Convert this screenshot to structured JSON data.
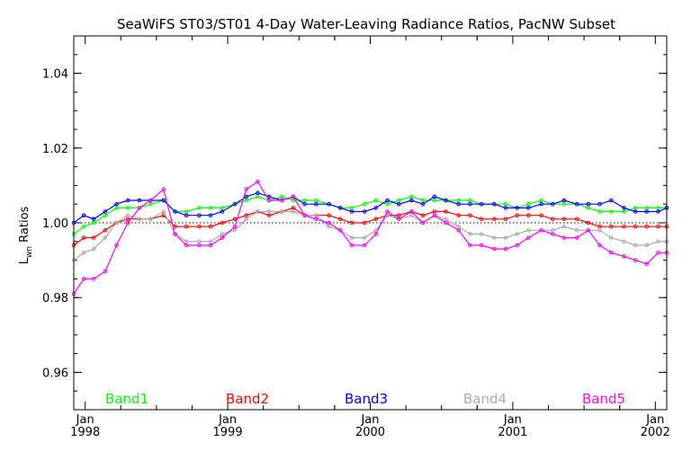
{
  "chart_data": {
    "type": "line",
    "title": "SeaWiFS ST03/ST01 4-Day Water-Leaving Radiance Ratios, PacNW Subset",
    "ylabel_main": "L",
    "ylabel_sub": "wn",
    "ylabel_rest": " Ratios",
    "xlabel": "",
    "ylim": [
      0.95,
      1.05
    ],
    "xlim": [
      1997.92,
      2002.08
    ],
    "yticks": [
      {
        "v": 0.96,
        "label": "0.96"
      },
      {
        "v": 0.98,
        "label": "0.98"
      },
      {
        "v": 1.0,
        "label": "1.00"
      },
      {
        "v": 1.02,
        "label": "1.02"
      },
      {
        "v": 1.04,
        "label": "1.04"
      }
    ],
    "xticks": [
      {
        "v": 1998.0,
        "month": "Jan",
        "year": "1998"
      },
      {
        "v": 1999.0,
        "month": "Jan",
        "year": "1999"
      },
      {
        "v": 2000.0,
        "month": "Jan",
        "year": "2000"
      },
      {
        "v": 2001.0,
        "month": "Jan",
        "year": "2001"
      },
      {
        "v": 2002.0,
        "month": "Jan",
        "year": "2002"
      }
    ],
    "reference_line": 1.0,
    "grid": false,
    "legend_placement": "bottom",
    "x": [
      1997.92,
      1997.99,
      1998.06,
      1998.14,
      1998.22,
      1998.3,
      1998.38,
      1998.46,
      1998.55,
      1998.63,
      1998.71,
      1998.8,
      1998.88,
      1998.96,
      1999.05,
      1999.13,
      1999.21,
      1999.29,
      1999.38,
      1999.46,
      1999.54,
      1999.62,
      1999.71,
      1999.79,
      1999.87,
      1999.96,
      2000.04,
      2000.12,
      2000.2,
      2000.29,
      2000.37,
      2000.45,
      2000.53,
      2000.62,
      2000.7,
      2000.78,
      2000.87,
      2000.95,
      2001.03,
      2001.11,
      2001.2,
      2001.28,
      2001.36,
      2001.45,
      2001.53,
      2001.61,
      2001.69,
      2001.78,
      2001.86,
      2001.94,
      2002.02,
      2002.08
    ],
    "series": [
      {
        "name": "Band1",
        "color": "#00ff00",
        "values": [
          0.997,
          0.999,
          1.0,
          1.002,
          1.004,
          1.004,
          1.004,
          1.005,
          1.006,
          1.003,
          1.003,
          1.004,
          1.004,
          1.004,
          1.005,
          1.006,
          1.007,
          1.006,
          1.007,
          1.006,
          1.006,
          1.006,
          1.005,
          1.004,
          1.004,
          1.005,
          1.006,
          1.005,
          1.006,
          1.007,
          1.006,
          1.006,
          1.006,
          1.006,
          1.006,
          1.005,
          1.005,
          1.005,
          1.004,
          1.005,
          1.006,
          1.005,
          1.005,
          1.005,
          1.004,
          1.003,
          1.003,
          1.003,
          1.004,
          1.004,
          1.004,
          1.004
        ]
      },
      {
        "name": "Band2",
        "color": "#ff0000",
        "values": [
          0.994,
          0.996,
          0.996,
          0.998,
          1.0,
          1.001,
          1.001,
          1.001,
          1.002,
          0.999,
          0.999,
          0.999,
          0.999,
          1.0,
          1.001,
          1.002,
          1.003,
          1.002,
          1.003,
          1.004,
          1.002,
          1.002,
          1.002,
          1.001,
          1.0,
          1.0,
          1.001,
          1.002,
          1.002,
          1.003,
          1.002,
          1.003,
          1.003,
          1.002,
          1.002,
          1.001,
          1.001,
          1.001,
          1.002,
          1.002,
          1.002,
          1.001,
          1.001,
          1.001,
          1.0,
          0.999,
          0.999,
          0.999,
          0.999,
          0.999,
          0.999,
          0.999
        ]
      },
      {
        "name": "Band3",
        "color": "#0000ff",
        "values": [
          1.0,
          1.002,
          1.001,
          1.003,
          1.005,
          1.006,
          1.006,
          1.006,
          1.006,
          1.003,
          1.002,
          1.002,
          1.002,
          1.003,
          1.005,
          1.007,
          1.008,
          1.007,
          1.006,
          1.007,
          1.005,
          1.005,
          1.005,
          1.004,
          1.003,
          1.003,
          1.004,
          1.006,
          1.005,
          1.006,
          1.005,
          1.007,
          1.006,
          1.005,
          1.005,
          1.005,
          1.005,
          1.004,
          1.004,
          1.004,
          1.005,
          1.005,
          1.006,
          1.005,
          1.005,
          1.005,
          1.006,
          1.004,
          1.003,
          1.003,
          1.003,
          1.004
        ]
      },
      {
        "name": "Band4",
        "color": "#aaaaaa",
        "values": [
          0.99,
          0.992,
          0.993,
          0.996,
          1.0,
          1.002,
          1.001,
          1.001,
          1.003,
          0.997,
          0.995,
          0.995,
          0.995,
          0.997,
          0.998,
          1.001,
          1.003,
          1.003,
          1.003,
          1.003,
          1.002,
          1.002,
          0.999,
          0.998,
          0.996,
          0.996,
          0.998,
          1.002,
          1.001,
          1.002,
          1.0,
          1.002,
          1.001,
          0.999,
          0.997,
          0.997,
          0.996,
          0.996,
          0.997,
          0.998,
          0.998,
          0.998,
          0.999,
          0.998,
          0.998,
          0.998,
          0.996,
          0.995,
          0.994,
          0.994,
          0.995,
          0.995
        ]
      },
      {
        "name": "Band5",
        "color": "#ff00ff",
        "values": [
          0.981,
          0.985,
          0.985,
          0.987,
          0.994,
          1.0,
          1.004,
          1.006,
          1.009,
          0.997,
          0.994,
          0.994,
          0.994,
          0.996,
          0.999,
          1.009,
          1.011,
          1.006,
          1.006,
          1.007,
          1.002,
          1.001,
          1.0,
          0.998,
          0.994,
          0.994,
          0.997,
          1.003,
          1.001,
          1.003,
          1.0,
          1.002,
          1.0,
          0.998,
          0.994,
          0.994,
          0.993,
          0.993,
          0.994,
          0.996,
          0.998,
          0.997,
          0.996,
          0.996,
          0.998,
          0.994,
          0.992,
          0.991,
          0.99,
          0.989,
          0.992,
          0.992
        ]
      }
    ]
  }
}
